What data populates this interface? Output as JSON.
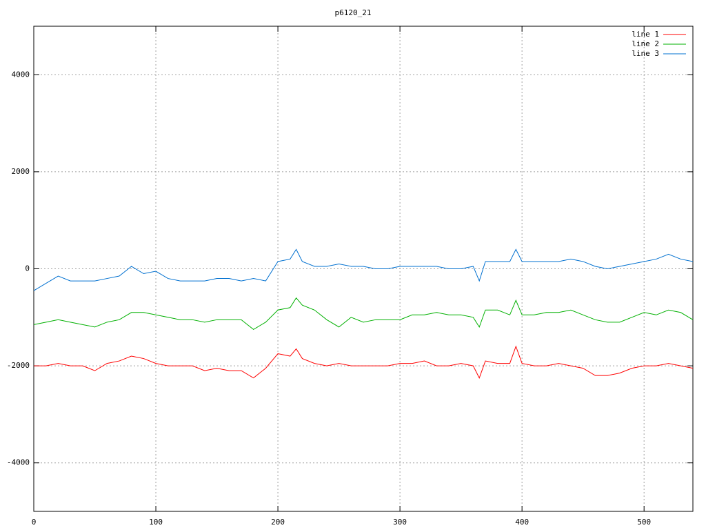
{
  "chart_data": {
    "type": "line",
    "title": "p6120_21",
    "x": [
      0,
      10,
      20,
      30,
      40,
      50,
      60,
      70,
      80,
      90,
      100,
      110,
      120,
      130,
      140,
      150,
      160,
      170,
      180,
      190,
      200,
      210,
      215,
      220,
      230,
      240,
      250,
      260,
      270,
      280,
      290,
      300,
      310,
      320,
      330,
      340,
      350,
      360,
      365,
      370,
      380,
      390,
      395,
      400,
      410,
      420,
      430,
      440,
      450,
      460,
      470,
      480,
      490,
      500,
      510,
      520,
      530,
      540
    ],
    "series": [
      {
        "name": "line 1",
        "color": "#ff0000",
        "values": [
          -2000,
          -2000,
          -1950,
          -2000,
          -2000,
          -2100,
          -1950,
          -1900,
          -1800,
          -1850,
          -1950,
          -2000,
          -2000,
          -2000,
          -2100,
          -2050,
          -2100,
          -2100,
          -2250,
          -2050,
          -1750,
          -1800,
          -1650,
          -1850,
          -1950,
          -2000,
          -1950,
          -2000,
          -2000,
          -2000,
          -2000,
          -1950,
          -1950,
          -1900,
          -2000,
          -2000,
          -1950,
          -2000,
          -2250,
          -1900,
          -1950,
          -1950,
          -1600,
          -1950,
          -2000,
          -2000,
          -1950,
          -2000,
          -2050,
          -2200,
          -2200,
          -2150,
          -2050,
          -2000,
          -2000,
          -1950,
          -2000,
          -2050
        ]
      },
      {
        "name": "line 2",
        "color": "#00b000",
        "values": [
          -1150,
          -1100,
          -1050,
          -1100,
          -1150,
          -1200,
          -1100,
          -1050,
          -900,
          -900,
          -950,
          -1000,
          -1050,
          -1050,
          -1100,
          -1050,
          -1050,
          -1050,
          -1250,
          -1100,
          -850,
          -800,
          -600,
          -750,
          -850,
          -1050,
          -1200,
          -1000,
          -1100,
          -1050,
          -1050,
          -1050,
          -950,
          -950,
          -900,
          -950,
          -950,
          -1000,
          -1200,
          -850,
          -850,
          -950,
          -650,
          -950,
          -950,
          -900,
          -900,
          -850,
          -950,
          -1050,
          -1100,
          -1100,
          -1000,
          -900,
          -950,
          -850,
          -900,
          -1050
        ]
      },
      {
        "name": "line 3",
        "color": "#0070d0",
        "values": [
          -450,
          -300,
          -150,
          -250,
          -250,
          -250,
          -200,
          -150,
          50,
          -100,
          -50,
          -200,
          -250,
          -250,
          -250,
          -200,
          -200,
          -250,
          -200,
          -250,
          150,
          200,
          400,
          150,
          50,
          50,
          100,
          50,
          50,
          0,
          0,
          50,
          50,
          50,
          50,
          0,
          0,
          50,
          -250,
          150,
          150,
          150,
          400,
          150,
          150,
          150,
          150,
          200,
          150,
          50,
          0,
          50,
          100,
          150,
          200,
          300,
          200,
          150
        ]
      }
    ],
    "xlim": [
      0,
      540
    ],
    "xticks": [
      0,
      100,
      200,
      300,
      400,
      500
    ],
    "ylim": [
      -5000,
      5000
    ],
    "yticks": [
      -4000,
      -2000,
      0,
      2000,
      4000
    ],
    "grid": true,
    "legend": "top-right"
  }
}
